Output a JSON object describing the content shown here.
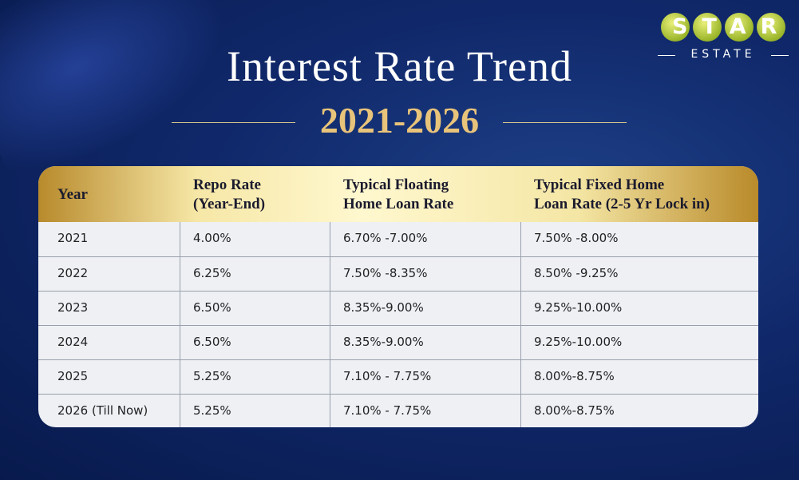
{
  "logo": {
    "name": "STAR",
    "tagline": "ESTATE"
  },
  "header": {
    "title": "Interest Rate Trend",
    "subtitle": "2021-2026"
  },
  "table": {
    "columns": [
      [
        "Year"
      ],
      [
        "Repo Rate",
        "(Year-End)"
      ],
      [
        "Typical Floating",
        "Home Loan Rate"
      ],
      [
        "Typical Fixed Home",
        "Loan Rate (2-5 Yr Lock in)"
      ]
    ],
    "rows": [
      [
        "2021",
        "4.00%",
        "6.70% -7.00%",
        "7.50% -8.00%"
      ],
      [
        "2022",
        "6.25%",
        "7.50% -8.35%",
        "8.50% -9.25%"
      ],
      [
        "2023",
        "6.50%",
        "8.35%-9.00%",
        "9.25%-10.00%"
      ],
      [
        "2024",
        "6.50%",
        "8.35%-9.00%",
        "9.25%-10.00%"
      ],
      [
        "2025",
        "5.25%",
        "7.10% - 7.75%",
        "8.00%-8.75%"
      ],
      [
        "2026 (Till Now)",
        "5.25%",
        "7.10% - 7.75%",
        "8.00%-8.75%"
      ]
    ]
  }
}
